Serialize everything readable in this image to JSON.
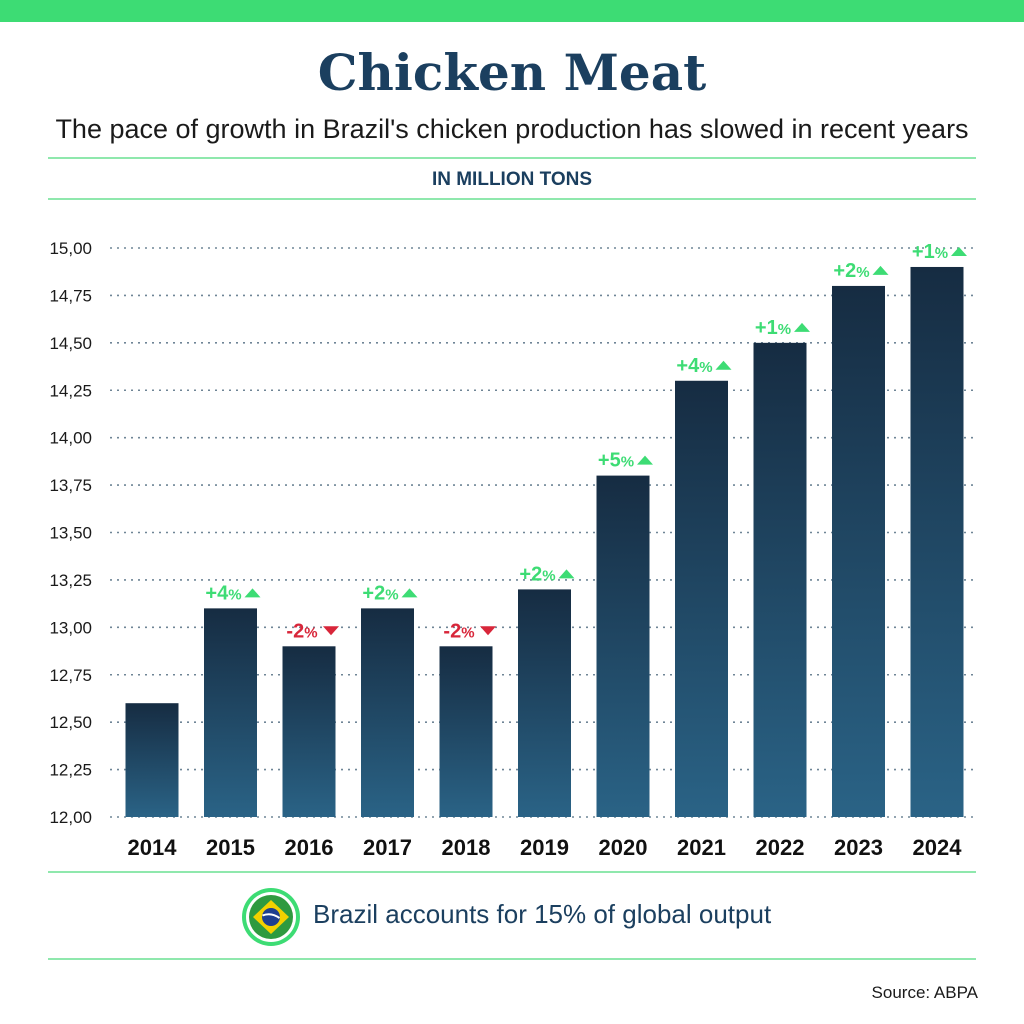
{
  "header": {
    "title": "Chicken Meat",
    "subtitle": "The pace of growth in Brazil's chicken production has slowed in recent years",
    "unit_label": "IN MILLION TONS"
  },
  "footer": {
    "note": "Brazil accounts for 15% of global output",
    "flag_icon": "brazil-flag-icon",
    "source": "Source: ABPA"
  },
  "colors": {
    "accent_green": "#3ddc74",
    "rule_green": "#8fe8ad",
    "bar_top": "#162c42",
    "bar_bottom": "#2a6386",
    "increase": "#3ddc74",
    "decrease": "#d8263a",
    "title": "#1b3f5f"
  },
  "chart_data": {
    "type": "bar",
    "categories": [
      "2014",
      "2015",
      "2016",
      "2017",
      "2018",
      "2019",
      "2020",
      "2021",
      "2022",
      "2023",
      "2024"
    ],
    "values": [
      12.6,
      13.1,
      12.9,
      13.1,
      12.9,
      13.2,
      13.8,
      14.3,
      14.5,
      14.8,
      14.9
    ],
    "ylim": [
      12.0,
      15.0
    ],
    "yticks": [
      "12,00",
      "12,25",
      "12,50",
      "12,75",
      "13,00",
      "13,25",
      "13,50",
      "13,75",
      "14,00",
      "14,25",
      "14,50",
      "14,75",
      "15,00"
    ],
    "grid": "horizontal dotted",
    "annotations": [
      null,
      {
        "num": "+4",
        "pct": "%",
        "dir": "up"
      },
      {
        "num": "-2",
        "pct": "%",
        "dir": "down"
      },
      {
        "num": "+2",
        "pct": "%",
        "dir": "up"
      },
      {
        "num": "-2",
        "pct": "%",
        "dir": "down"
      },
      {
        "num": "+2",
        "pct": "%",
        "dir": "up"
      },
      {
        "num": "+5",
        "pct": "%",
        "dir": "up"
      },
      {
        "num": "+4",
        "pct": "%",
        "dir": "up"
      },
      {
        "num": "+1",
        "pct": "%",
        "dir": "up"
      },
      {
        "num": "+2",
        "pct": "%",
        "dir": "up"
      },
      {
        "num": "+1",
        "pct": "%",
        "dir": "up"
      }
    ]
  }
}
